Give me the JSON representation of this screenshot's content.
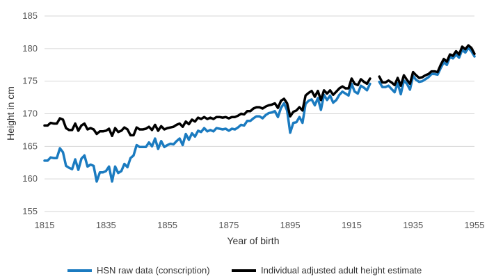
{
  "chart_data": {
    "type": "line",
    "title": "",
    "xlabel": "Year of birth",
    "ylabel": "Height in cm",
    "xlim": [
      1815,
      1955
    ],
    "ylim": [
      155,
      185
    ],
    "x_ticks": [
      1815,
      1835,
      1855,
      1875,
      1895,
      1915,
      1935,
      1955
    ],
    "y_ticks": [
      155,
      160,
      165,
      170,
      175,
      180,
      185
    ],
    "grid": "horizontal",
    "legend_position": "bottom",
    "series": [
      {
        "name": "HSN raw data (conscription)",
        "color": "#1b7bc0",
        "points": [
          [
            1815,
            162.8
          ],
          [
            1816,
            162.8
          ],
          [
            1817,
            163.3
          ],
          [
            1818,
            163.2
          ],
          [
            1819,
            163.2
          ],
          [
            1820,
            164.7
          ],
          [
            1821,
            164.1
          ],
          [
            1822,
            162.0
          ],
          [
            1823,
            161.7
          ],
          [
            1824,
            161.5
          ],
          [
            1825,
            163.0
          ],
          [
            1826,
            161.4
          ],
          [
            1827,
            163.1
          ],
          [
            1828,
            163.6
          ],
          [
            1829,
            161.9
          ],
          [
            1830,
            162.2
          ],
          [
            1831,
            162.0
          ],
          [
            1832,
            159.6
          ],
          [
            1833,
            161.0
          ],
          [
            1834,
            161.0
          ],
          [
            1835,
            161.2
          ],
          [
            1836,
            161.9
          ],
          [
            1837,
            159.6
          ],
          [
            1838,
            161.9
          ],
          [
            1839,
            160.9
          ],
          [
            1840,
            161.2
          ],
          [
            1841,
            162.3
          ],
          [
            1842,
            161.8
          ],
          [
            1843,
            163.2
          ],
          [
            1844,
            163.6
          ],
          [
            1845,
            165.2
          ],
          [
            1846,
            164.9
          ],
          [
            1847,
            164.9
          ],
          [
            1848,
            164.9
          ],
          [
            1849,
            165.6
          ],
          [
            1850,
            165.0
          ],
          [
            1851,
            166.2
          ],
          [
            1852,
            164.6
          ],
          [
            1853,
            165.8
          ],
          [
            1854,
            164.9
          ],
          [
            1855,
            165.2
          ],
          [
            1856,
            165.4
          ],
          [
            1857,
            165.3
          ],
          [
            1858,
            165.8
          ],
          [
            1859,
            166.2
          ],
          [
            1860,
            165.2
          ],
          [
            1861,
            166.9
          ],
          [
            1862,
            166.0
          ],
          [
            1863,
            167.0
          ],
          [
            1864,
            166.5
          ],
          [
            1865,
            167.4
          ],
          [
            1866,
            167.2
          ],
          [
            1867,
            167.8
          ],
          [
            1868,
            167.3
          ],
          [
            1869,
            167.5
          ],
          [
            1870,
            167.3
          ],
          [
            1871,
            167.8
          ],
          [
            1872,
            167.7
          ],
          [
            1873,
            167.6
          ],
          [
            1874,
            167.7
          ],
          [
            1875,
            167.4
          ],
          [
            1876,
            167.7
          ],
          [
            1877,
            167.6
          ],
          [
            1878,
            167.9
          ],
          [
            1879,
            168.3
          ],
          [
            1880,
            168.2
          ],
          [
            1881,
            168.9
          ],
          [
            1882,
            168.9
          ],
          [
            1883,
            169.3
          ],
          [
            1884,
            169.6
          ],
          [
            1885,
            169.6
          ],
          [
            1886,
            169.3
          ],
          [
            1887,
            169.8
          ],
          [
            1888,
            170.1
          ],
          [
            1889,
            170.2
          ],
          [
            1890,
            170.4
          ],
          [
            1891,
            169.5
          ],
          [
            1892,
            170.9
          ],
          [
            1893,
            171.6
          ],
          [
            1894,
            170.5
          ],
          [
            1895,
            167.1
          ],
          [
            1896,
            168.6
          ],
          [
            1897,
            168.7
          ],
          [
            1898,
            169.5
          ],
          [
            1899,
            168.6
          ],
          [
            1900,
            171.5
          ],
          [
            1901,
            172.0
          ],
          [
            1902,
            172.2
          ],
          [
            1903,
            171.3
          ],
          [
            1904,
            172.4
          ],
          [
            1905,
            170.6
          ],
          [
            1906,
            172.9
          ],
          [
            1907,
            172.1
          ],
          [
            1908,
            172.8
          ],
          [
            1909,
            171.7
          ],
          [
            1910,
            172.1
          ],
          [
            1911,
            172.9
          ],
          [
            1912,
            173.4
          ],
          [
            1913,
            173.1
          ],
          [
            1914,
            172.8
          ],
          [
            1915,
            174.6
          ],
          [
            1916,
            173.4
          ],
          [
            1917,
            173.1
          ],
          [
            1918,
            174.3
          ],
          [
            1919,
            174.0
          ],
          [
            1920,
            173.6
          ],
          [
            1921,
            174.6
          ],
          null,
          [
            1924,
            174.9
          ],
          [
            1925,
            174.1
          ],
          [
            1926,
            174.1
          ],
          [
            1927,
            174.3
          ],
          [
            1928,
            173.8
          ],
          [
            1929,
            173.3
          ],
          [
            1930,
            174.7
          ],
          [
            1931,
            173.0
          ],
          [
            1932,
            175.1
          ],
          [
            1933,
            174.6
          ],
          [
            1934,
            173.7
          ],
          [
            1935,
            175.8
          ],
          [
            1936,
            175.2
          ],
          [
            1937,
            174.9
          ],
          [
            1938,
            175.0
          ],
          [
            1939,
            175.3
          ],
          [
            1940,
            175.6
          ],
          [
            1941,
            176.1
          ],
          [
            1942,
            176.1
          ],
          [
            1943,
            176.0
          ],
          [
            1944,
            177.0
          ],
          [
            1945,
            177.9
          ],
          [
            1946,
            177.5
          ],
          [
            1947,
            178.7
          ],
          [
            1948,
            178.5
          ],
          [
            1949,
            179.1
          ],
          [
            1950,
            178.6
          ],
          [
            1951,
            179.8
          ],
          [
            1952,
            179.4
          ],
          [
            1953,
            180.1
          ],
          [
            1954,
            179.6
          ],
          [
            1955,
            178.8
          ]
        ]
      },
      {
        "name": "Individual adjusted adult height estimate",
        "color": "#000000",
        "points": [
          [
            1815,
            168.2
          ],
          [
            1816,
            168.2
          ],
          [
            1817,
            168.6
          ],
          [
            1818,
            168.5
          ],
          [
            1819,
            168.5
          ],
          [
            1820,
            169.3
          ],
          [
            1821,
            169.1
          ],
          [
            1822,
            167.8
          ],
          [
            1823,
            167.5
          ],
          [
            1824,
            167.5
          ],
          [
            1825,
            168.5
          ],
          [
            1826,
            167.4
          ],
          [
            1827,
            168.2
          ],
          [
            1828,
            168.5
          ],
          [
            1829,
            167.6
          ],
          [
            1830,
            167.8
          ],
          [
            1831,
            167.6
          ],
          [
            1832,
            166.9
          ],
          [
            1833,
            167.3
          ],
          [
            1834,
            167.3
          ],
          [
            1835,
            167.4
          ],
          [
            1836,
            167.7
          ],
          [
            1837,
            166.6
          ],
          [
            1838,
            167.8
          ],
          [
            1839,
            167.2
          ],
          [
            1840,
            167.4
          ],
          [
            1841,
            167.9
          ],
          [
            1842,
            167.6
          ],
          [
            1843,
            166.7
          ],
          [
            1844,
            166.7
          ],
          [
            1845,
            167.9
          ],
          [
            1846,
            167.6
          ],
          [
            1847,
            167.6
          ],
          [
            1848,
            167.7
          ],
          [
            1849,
            168.0
          ],
          [
            1850,
            167.5
          ],
          [
            1851,
            168.3
          ],
          [
            1852,
            167.4
          ],
          [
            1853,
            168.1
          ],
          [
            1854,
            167.6
          ],
          [
            1855,
            167.8
          ],
          [
            1856,
            167.9
          ],
          [
            1857,
            168.0
          ],
          [
            1858,
            168.3
          ],
          [
            1859,
            168.5
          ],
          [
            1860,
            168.0
          ],
          [
            1861,
            168.8
          ],
          [
            1862,
            168.4
          ],
          [
            1863,
            169.1
          ],
          [
            1864,
            168.8
          ],
          [
            1865,
            169.4
          ],
          [
            1866,
            169.2
          ],
          [
            1867,
            169.5
          ],
          [
            1868,
            169.2
          ],
          [
            1869,
            169.4
          ],
          [
            1870,
            169.2
          ],
          [
            1871,
            169.5
          ],
          [
            1872,
            169.5
          ],
          [
            1873,
            169.4
          ],
          [
            1874,
            169.5
          ],
          [
            1875,
            169.3
          ],
          [
            1876,
            169.5
          ],
          [
            1877,
            169.5
          ],
          [
            1878,
            169.7
          ],
          [
            1879,
            170.0
          ],
          [
            1880,
            169.9
          ],
          [
            1881,
            170.4
          ],
          [
            1882,
            170.4
          ],
          [
            1883,
            170.8
          ],
          [
            1884,
            171.0
          ],
          [
            1885,
            171.0
          ],
          [
            1886,
            170.8
          ],
          [
            1887,
            171.1
          ],
          [
            1888,
            171.3
          ],
          [
            1889,
            171.4
          ],
          [
            1890,
            171.6
          ],
          [
            1891,
            170.9
          ],
          [
            1892,
            172.0
          ],
          [
            1893,
            172.3
          ],
          [
            1894,
            171.6
          ],
          [
            1895,
            169.6
          ],
          [
            1896,
            170.3
          ],
          [
            1897,
            170.5
          ],
          [
            1898,
            171.0
          ],
          [
            1899,
            170.5
          ],
          [
            1900,
            172.8
          ],
          [
            1901,
            173.2
          ],
          [
            1902,
            173.5
          ],
          [
            1903,
            172.6
          ],
          [
            1904,
            173.5
          ],
          [
            1905,
            172.1
          ],
          [
            1906,
            173.6
          ],
          [
            1907,
            173.1
          ],
          [
            1908,
            173.6
          ],
          [
            1909,
            172.9
          ],
          [
            1910,
            173.4
          ],
          [
            1911,
            173.9
          ],
          [
            1912,
            174.2
          ],
          [
            1913,
            173.9
          ],
          [
            1914,
            173.9
          ],
          [
            1915,
            175.4
          ],
          [
            1916,
            174.6
          ],
          [
            1917,
            174.4
          ],
          [
            1918,
            175.3
          ],
          [
            1919,
            174.9
          ],
          [
            1920,
            174.6
          ],
          [
            1921,
            175.4
          ],
          null,
          [
            1924,
            175.7
          ],
          [
            1925,
            174.8
          ],
          [
            1926,
            174.8
          ],
          [
            1927,
            175.1
          ],
          [
            1928,
            174.8
          ],
          [
            1929,
            174.4
          ],
          [
            1930,
            175.5
          ],
          [
            1931,
            174.3
          ],
          [
            1932,
            175.9
          ],
          [
            1933,
            175.2
          ],
          [
            1934,
            174.6
          ],
          [
            1935,
            176.4
          ],
          [
            1936,
            175.9
          ],
          [
            1937,
            175.5
          ],
          [
            1938,
            175.6
          ],
          [
            1939,
            175.9
          ],
          [
            1940,
            176.1
          ],
          [
            1941,
            176.5
          ],
          [
            1942,
            176.5
          ],
          [
            1943,
            176.4
          ],
          [
            1944,
            177.5
          ],
          [
            1945,
            178.4
          ],
          [
            1946,
            178.0
          ],
          [
            1947,
            179.1
          ],
          [
            1948,
            178.9
          ],
          [
            1949,
            179.6
          ],
          [
            1950,
            179.1
          ],
          [
            1951,
            180.3
          ],
          [
            1952,
            179.9
          ],
          [
            1953,
            180.5
          ],
          [
            1954,
            180.1
          ],
          [
            1955,
            179.2
          ]
        ]
      }
    ]
  }
}
